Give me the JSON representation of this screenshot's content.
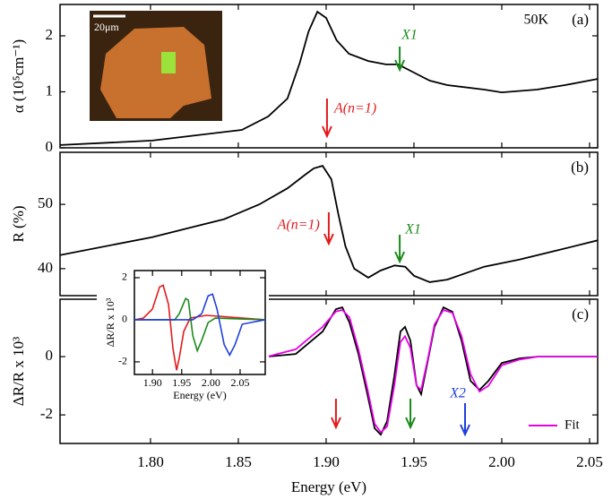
{
  "chart_data": [
    {
      "type": "line",
      "y_label": "α (10⁵cm⁻¹)",
      "panel_label": "(a)",
      "annotation": "50K",
      "scale_label": "20μm",
      "xlim": [
        1.7485,
        2.0546
      ],
      "ylim": [
        0,
        2.56
      ],
      "yticks": [
        0,
        1,
        2
      ],
      "x": [
        1.7485,
        1.801,
        1.852,
        1.867,
        1.878,
        1.885,
        1.89,
        1.895,
        1.9,
        1.906,
        1.913,
        1.924,
        1.934,
        1.941,
        1.949,
        1.959,
        1.969,
        1.99,
        2.0,
        2.02,
        2.036,
        2.0546
      ],
      "series": [
        {
          "color": "#000000",
          "values": [
            0.05,
            0.13,
            0.32,
            0.56,
            0.88,
            1.52,
            2.08,
            2.43,
            2.32,
            1.92,
            1.68,
            1.55,
            1.49,
            1.49,
            1.36,
            1.2,
            1.12,
            1.04,
            0.99,
            1.04,
            1.12,
            1.23
          ]
        }
      ],
      "arrows": [
        {
          "x": 1.9005,
          "color": "#e31a1c",
          "label": "A(n=1)"
        },
        {
          "x": 1.9419,
          "color": "#1a8a1a",
          "label": "X1"
        }
      ]
    },
    {
      "type": "line",
      "y_label": "R (%)",
      "panel_label": "(b)",
      "xlim": [
        1.7485,
        2.0546
      ],
      "ylim": [
        35.8,
        58.1
      ],
      "yticks": [
        40,
        50
      ],
      "x": [
        1.7485,
        1.801,
        1.842,
        1.862,
        1.878,
        1.888,
        1.893,
        1.898,
        1.903,
        1.907,
        1.911,
        1.916,
        1.924,
        1.931,
        1.939,
        1.945,
        1.95,
        1.959,
        1.969,
        1.99,
        2.01,
        2.031,
        2.0546
      ],
      "series": [
        {
          "color": "#000000",
          "values": [
            42.1,
            44.9,
            47.7,
            50.0,
            52.5,
            54.6,
            55.6,
            56.0,
            53.9,
            48.4,
            43.5,
            40.0,
            38.6,
            39.7,
            40.5,
            40.3,
            38.9,
            37.9,
            38.3,
            40.3,
            41.4,
            42.8,
            44.4
          ]
        }
      ],
      "arrows": [
        {
          "x": 1.9015,
          "color": "#e31a1c",
          "label": "A(n=1)"
        },
        {
          "x": 1.9419,
          "color": "#1a8a1a",
          "label": "X1"
        }
      ]
    },
    {
      "type": "line",
      "y_label": "ΔR/R x 10³",
      "x_label": "Energy (eV)",
      "panel_label": "(c)",
      "xlim": [
        1.7485,
        2.0546
      ],
      "ylim": [
        -2.98,
        1.97
      ],
      "yticks": [
        0,
        -2
      ],
      "xticks": [
        {
          "value": 1.8,
          "label": "1.80"
        },
        1.85,
        {
          "value": 1.9,
          "label": "1.90"
        },
        1.95,
        {
          "value": 2.0,
          "label": "2.00"
        },
        2.05
      ],
      "x": [
        1.8664,
        1.8827,
        1.898,
        1.9056,
        1.9092,
        1.9133,
        1.9184,
        1.9235,
        1.9276,
        1.9311,
        1.9347,
        1.9388,
        1.9423,
        1.9449,
        1.948,
        1.9515,
        1.9541,
        1.9582,
        1.9617,
        1.9668,
        1.9719,
        1.9771,
        1.9822,
        1.9873,
        1.9924,
        2.0,
        2.0102,
        2.0204,
        2.0409,
        2.0546
      ],
      "series": [
        {
          "color": "#000000",
          "values": [
            0,
            0.09,
            0.86,
            1.63,
            1.69,
            1.17,
            0.09,
            -1.29,
            -2.46,
            -2.68,
            -2.22,
            -0.68,
            0.86,
            1.02,
            0.55,
            -0.98,
            -1.29,
            -0.06,
            1.02,
            1.69,
            1.54,
            0.55,
            -0.83,
            -1.14,
            -0.83,
            -0.22,
            -0.06,
            0,
            0,
            0
          ]
        },
        {
          "name": "Fit",
          "color": "#e600e6",
          "values": [
            0,
            0.25,
            1.02,
            1.55,
            1.6,
            1.35,
            0.25,
            -1.1,
            -2.3,
            -2.6,
            -2.4,
            -1.0,
            0.5,
            0.7,
            0.3,
            -1.0,
            -1.14,
            0.0,
            1.1,
            1.6,
            1.5,
            0.7,
            -0.6,
            -1.2,
            -1.0,
            -0.3,
            -0.1,
            0,
            0,
            0
          ]
        }
      ],
      "arrows": [
        {
          "x": 1.9056,
          "color": "#e31a1c"
        },
        {
          "x": 1.948,
          "color": "#1a8a1a"
        },
        {
          "x": 1.9791,
          "color": "#1f3fdc",
          "label": "X2"
        }
      ]
    },
    {
      "type": "line",
      "y_label": "ΔR/R x 10³",
      "x_label": "Energy (eV)",
      "xlim": [
        1.869,
        2.093
      ],
      "ylim": [
        -2.6,
        2.34
      ],
      "yticks": [
        -2,
        0,
        2
      ],
      "xticks": [
        {
          "value": 1.9,
          "label": "1.90"
        },
        1.95,
        {
          "value": 2.0,
          "label": "2.00"
        },
        2.05
      ],
      "series": [
        {
          "color": "#e31a1c",
          "x": [
            1.869,
            1.8844,
            1.8998,
            1.9121,
            1.9182,
            1.9275,
            1.9352,
            1.9413,
            1.9459,
            1.9536,
            1.9644,
            1.9921,
            2.093
          ],
          "values": [
            0,
            0.08,
            0.51,
            1.56,
            1.64,
            0.72,
            -1.39,
            -2.4,
            -1.81,
            -0.55,
            0.08,
            0.21,
            0
          ]
        },
        {
          "color": "#1a8a1a",
          "x": [
            1.869,
            1.9382,
            1.9459,
            1.9567,
            1.9613,
            1.969,
            1.9767,
            1.9844,
            1.9952,
            2.0075,
            2.093
          ],
          "values": [
            0,
            0,
            0.29,
            1.01,
            0.93,
            -0.76,
            -1.47,
            -0.97,
            -0.13,
            0.08,
            0
          ]
        },
        {
          "color": "#1f3fdc",
          "x": [
            1.869,
            1.969,
            1.9844,
            1.9952,
            2.0028,
            2.0105,
            2.0228,
            2.0321,
            2.0413,
            2.0536,
            2.093
          ],
          "values": [
            0,
            0,
            0.29,
            1.14,
            1.22,
            0.51,
            -1.18,
            -1.68,
            -1.18,
            -0.21,
            0
          ]
        }
      ]
    }
  ]
}
